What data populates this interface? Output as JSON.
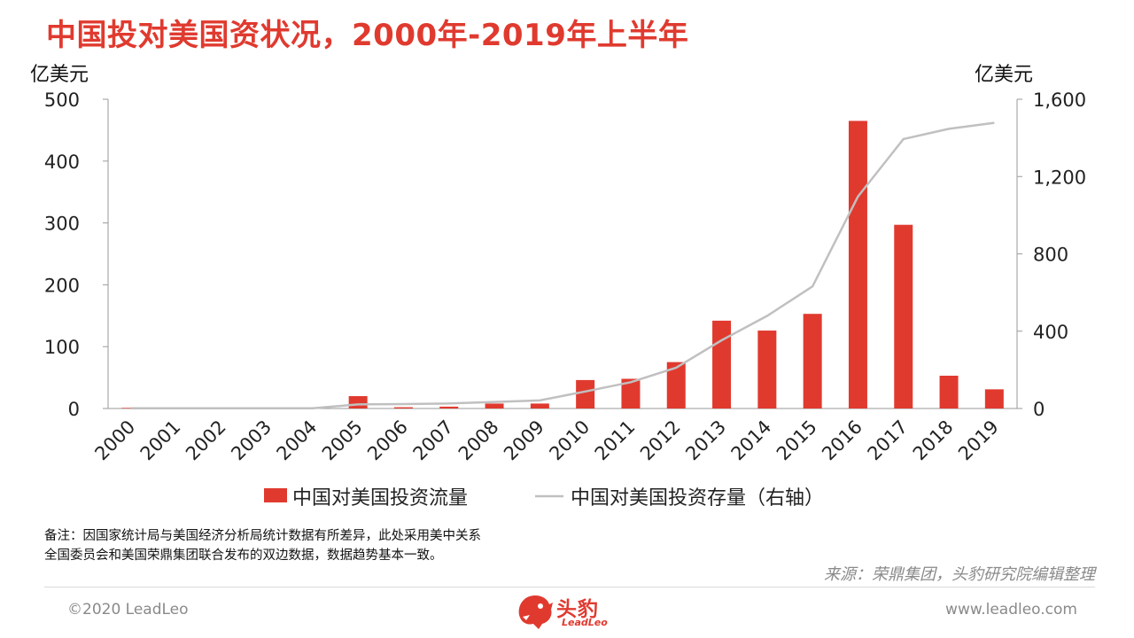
{
  "title": "中国投对美国资状况，2000年-2019年上半年",
  "left_unit": "亿美元",
  "right_unit": "亿美元",
  "note_lines": [
    "备注：因国家统计局与美国经济分析局统计数据有所差异，此处采用美中关系",
    "全国委员会和美国荣鼎集团联合发布的双边数据，数据趋势基本一致。"
  ],
  "source": "来源：荣鼎集团，头豹研究院编辑整理",
  "copyright": "©2020 LeadLeo",
  "website": "www.leadleo.com",
  "logo": {
    "cn": "头豹",
    "en": "LeadLeo"
  },
  "colors": {
    "accent": "#e03a2f",
    "bar": "#e03a2f",
    "line": "#c0c0c0"
  },
  "chart_data": {
    "type": "bar",
    "categories": [
      "2000",
      "2001",
      "2002",
      "2003",
      "2004",
      "2005",
      "2006",
      "2007",
      "2008",
      "2009",
      "2010",
      "2011",
      "2012",
      "2013",
      "2014",
      "2015",
      "2016",
      "2017",
      "2018",
      "2019"
    ],
    "series": [
      {
        "name": "中国对美国投资流量",
        "type": "bar",
        "axis": "left",
        "values": [
          1,
          0,
          0,
          0,
          0,
          20,
          2,
          3,
          8,
          8,
          46,
          48,
          75,
          142,
          126,
          153,
          465,
          297,
          53,
          31
        ]
      },
      {
        "name": "中国对美国投资存量（右轴）",
        "type": "line",
        "axis": "right",
        "values": [
          1,
          1,
          1,
          1,
          1,
          21,
          23,
          26,
          34,
          42,
          88,
          136,
          211,
          353,
          479,
          632,
          1097,
          1394,
          1447,
          1478
        ]
      }
    ],
    "y_left": {
      "ylim": [
        0,
        500
      ],
      "ticks": [
        "0",
        "100",
        "200",
        "300",
        "400",
        "500"
      ]
    },
    "y_right": {
      "ylim": [
        0,
        1600
      ],
      "ticks": [
        "0",
        "400",
        "800",
        "1,200",
        "1,600"
      ]
    },
    "grid": false,
    "legend": "bottom"
  }
}
